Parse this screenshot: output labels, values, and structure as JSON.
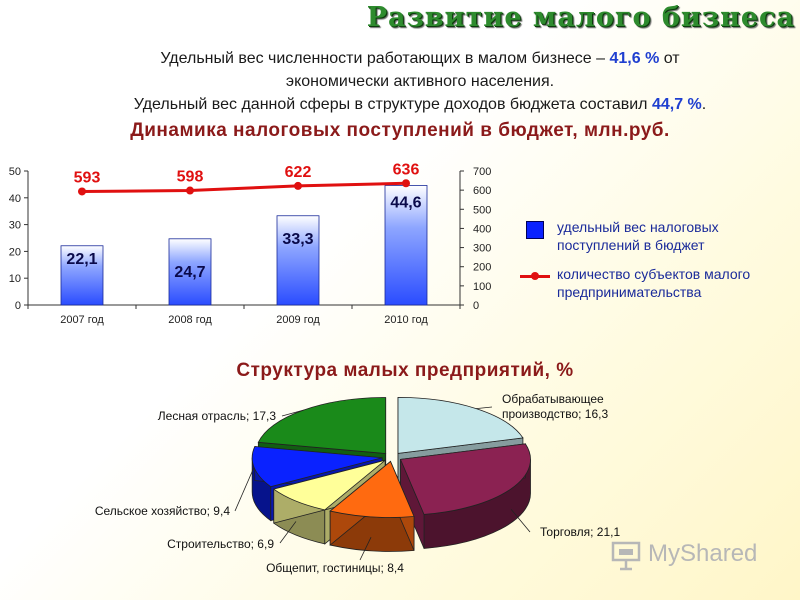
{
  "title": "Развитие малого бизнеса",
  "intro": {
    "line1_a": "Удельный вес численности работающих в малом бизнесе – ",
    "line1_value": "41,6 %",
    "line1_b": "  от",
    "line2": "экономически активного населения.",
    "line3_a": "Удельный вес данной сферы в структуре доходов бюджета составил ",
    "line3_value": "44,7 %",
    "line3_b": "."
  },
  "chart_heading": "Динамика налоговых поступлений в бюджет, млн.руб.",
  "pie_heading": "Структура  малых  предприятий, %",
  "legend": {
    "bars_label": "удельный вес налоговых поступлений в бюджет",
    "line_label": "количество субъектов малого предпринимательства"
  },
  "watermark": "MyShared",
  "colors": {
    "bar": "#3a5cff",
    "line": "#e01010",
    "title": "#2e8b2e",
    "heading": "#8b1a1a",
    "highlight": "#1f3fd0"
  },
  "chart_data": [
    {
      "type": "bar",
      "categories": [
        "2007 год",
        "2008 год",
        "2009 год",
        "2010 год"
      ],
      "series": [
        {
          "values": [
            22.1,
            24.7,
            33.3,
            44.6
          ],
          "labels": [
            "22,1",
            "24,7",
            "33,3",
            "44,6"
          ],
          "axis": "left"
        },
        {
          "type": "line",
          "values": [
            593,
            598,
            622,
            636
          ],
          "labels": [
            "593",
            "598",
            "622",
            "636"
          ],
          "axis": "right"
        }
      ],
      "ylim": [
        0,
        50
      ],
      "y_ticks": [
        "0",
        "10",
        "20",
        "30",
        "40",
        "50"
      ],
      "y2lim": [
        0,
        700
      ],
      "y2_ticks": [
        "0",
        "100",
        "200",
        "300",
        "400",
        "500",
        "600",
        "700"
      ],
      "legend_position": "right"
    },
    {
      "type": "pie",
      "labels": [
        "Обрабатывающее производство",
        "Торговля",
        "Общепит, гостиницы",
        "Строительство",
        "Сельское хозяйство",
        "Лесная отрасль"
      ],
      "label_texts": [
        "Обрабатывающее производство; 16,3",
        "Торговля; 21,1",
        "Общепит, гостиницы; 8,4",
        "Строительство; 6,9",
        "Сельское хозяйство; 9,4",
        "Лесная отрасль; 17,3"
      ],
      "values": [
        16.3,
        21.1,
        8.4,
        6.9,
        9.4,
        17.3
      ],
      "colors": [
        "#c5e7ea",
        "#8b2252",
        "#ff6a10",
        "#ffff99",
        "#0a22ff",
        "#1a8a1a"
      ],
      "style": "3d-exploded"
    }
  ]
}
